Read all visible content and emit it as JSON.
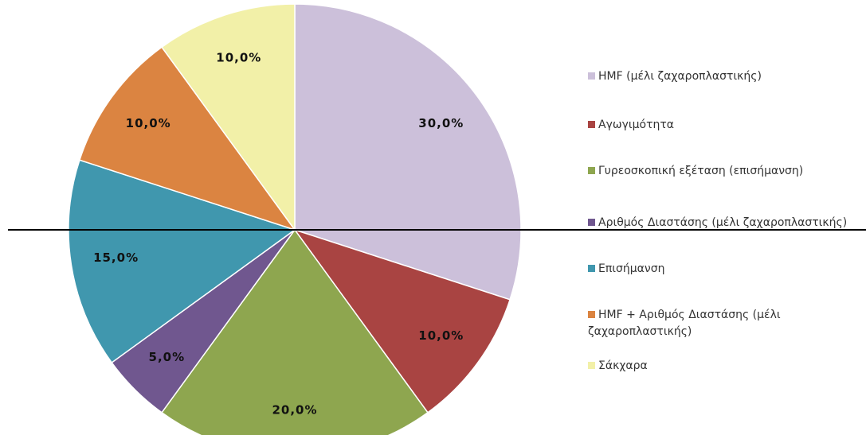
{
  "chart_data": {
    "type": "pie",
    "categories": [
      "HMF (μέλι ζαχαροπλαστικής)",
      "Αγωγιμότητα",
      "Γυρεοσκοπική εξέταση (επισήμανση)",
      "Αριθμός Διαστάσης (μέλι ζαχαροπλαστικής)",
      "Επισήμανση",
      "HMF + Αριθμός Διαστάσης (μέλι ζαχαροπλαστικής)",
      "Σάκχαρα"
    ],
    "values": [
      30,
      10,
      20,
      5,
      15,
      10,
      10
    ],
    "value_labels": [
      "30,0%",
      "10,0%",
      "20,0%",
      "5,0%",
      "15,0%",
      "10,0%",
      "10,0%"
    ],
    "colors": [
      "#ccc0da",
      "#a94442",
      "#8ea64f",
      "#70578f",
      "#4097ae",
      "#db8441",
      "#f2f0a8"
    ],
    "legend": "right"
  }
}
